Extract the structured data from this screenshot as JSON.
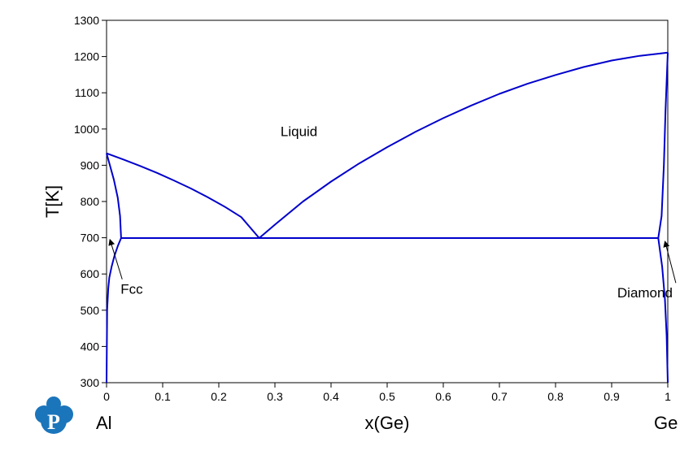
{
  "chart_data": {
    "type": "line",
    "xlabel": "x(Ge)",
    "ylabel": "T[K]",
    "xlim": [
      0,
      1
    ],
    "ylim": [
      300,
      1300
    ],
    "x_ticks": [
      "0",
      "0.1",
      "0.2",
      "0.3",
      "0.4",
      "0.5",
      "0.6",
      "0.7",
      "0.8",
      "0.9",
      "1"
    ],
    "y_ticks": [
      "300",
      "400",
      "500",
      "600",
      "700",
      "800",
      "900",
      "1000",
      "1100",
      "1200",
      "1300"
    ],
    "x_tick_values": [
      0,
      0.1,
      0.2,
      0.3,
      0.4,
      0.5,
      0.6,
      0.7,
      0.8,
      0.9,
      1
    ],
    "y_tick_values": [
      300,
      400,
      500,
      600,
      700,
      800,
      900,
      1000,
      1100,
      1200,
      1300
    ],
    "end_labels": {
      "left": "Al",
      "right": "Ge"
    },
    "series_color": "#0000cc",
    "grid": false,
    "series": [
      {
        "x": [
          0,
          0.03,
          0.06,
          0.09,
          0.12,
          0.15,
          0.18,
          0.21,
          0.24,
          0.272
        ],
        "y": [
          933,
          916,
          898,
          879,
          858,
          836,
          812,
          786,
          757,
          699
        ]
      },
      {
        "x": [
          0.272,
          0.3,
          0.35,
          0.4,
          0.45,
          0.5,
          0.55,
          0.6,
          0.65,
          0.7,
          0.75,
          0.8,
          0.85,
          0.9,
          0.95,
          1.0
        ],
        "y": [
          699,
          736,
          800,
          855,
          905,
          950,
          992,
          1030,
          1065,
          1097,
          1125,
          1149,
          1171,
          1189,
          1202,
          1211
        ]
      },
      {
        "x": [
          0.026,
          0.983
        ],
        "y": [
          699,
          699
        ]
      },
      {
        "x": [
          0,
          0.006,
          0.013,
          0.02,
          0.024,
          0.026
        ],
        "y": [
          933,
          900,
          860,
          810,
          760,
          699
        ]
      },
      {
        "x": [
          0.026,
          0.02,
          0.014,
          0.009,
          0.005,
          0.003,
          0.001,
          0
        ],
        "y": [
          699,
          677,
          650,
          620,
          590,
          560,
          500,
          300
        ]
      },
      {
        "x": [
          0.983,
          0.989,
          0.993,
          0.996,
          1.0
        ],
        "y": [
          699,
          760,
          900,
          1050,
          1211
        ]
      },
      {
        "x": [
          0.983,
          0.99,
          0.995,
          0.998,
          1.0
        ],
        "y": [
          699,
          620,
          530,
          430,
          300
        ]
      }
    ],
    "annotations": [
      {
        "text": "Liquid",
        "x": 0.31,
        "y": 980
      },
      {
        "text": "Fcc",
        "x": 0.025,
        "y": 545,
        "arrow_to": [
          0.006,
          695
        ]
      },
      {
        "text": "Diamond",
        "x": 0.91,
        "y": 535,
        "arrow_to": [
          0.995,
          690
        ]
      }
    ]
  },
  "logo": {
    "glyph": "P",
    "color": "#1b75bb"
  }
}
